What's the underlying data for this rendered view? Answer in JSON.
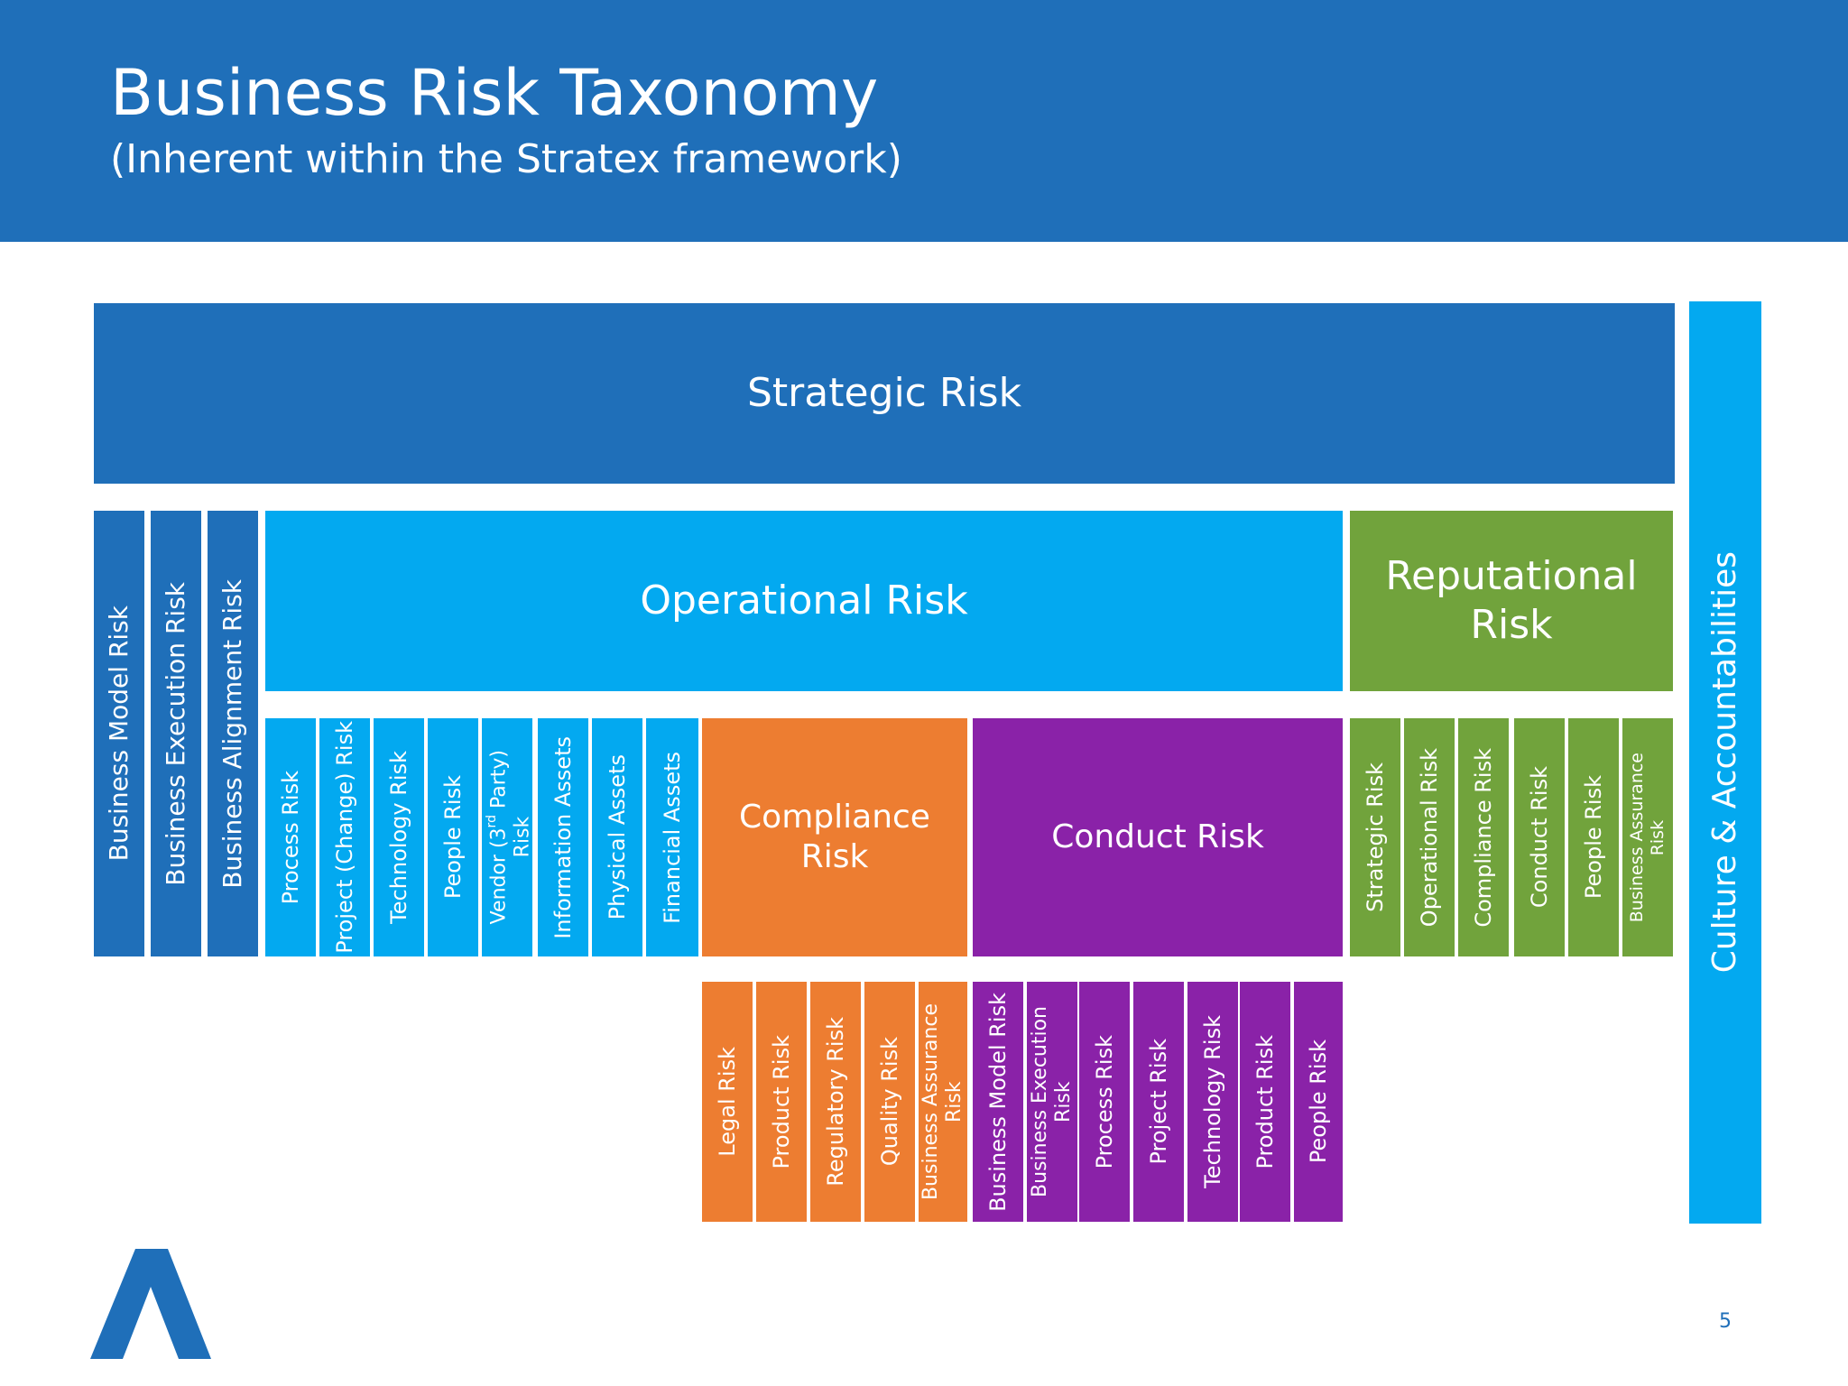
{
  "header": {
    "title": "Business Risk Taxonomy",
    "subtitle": "(Inherent within the Stratex framework)"
  },
  "colors": {
    "header_blue": "#1f6fb9",
    "strategic_blue": "#1f6fb9",
    "operational_cyan": "#03a9f0",
    "reputational_green": "#71a33c",
    "compliance_orange": "#ed7d31",
    "conduct_purple": "#8a22a8"
  },
  "strategic": {
    "label": "Strategic Risk"
  },
  "culture": {
    "label": "Culture & Accountabilities"
  },
  "strategic_sub": [
    "Business Model Risk",
    "Business Execution Risk",
    "Business Alignment Risk"
  ],
  "operational": {
    "label": "Operational Risk",
    "sub": [
      "Process Risk",
      "Project (Change) Risk",
      "Technology Risk",
      "People Risk",
      "Information Assets",
      "Physical Assets",
      "Financial Assets"
    ],
    "vendor": {
      "line1": "Vendor (3",
      "sup": "rd",
      "line1_end": " Party)",
      "line2": "Risk"
    }
  },
  "reputational": {
    "line1": "Reputational",
    "line2": "Risk",
    "sub": [
      "Strategic Risk",
      "Operational Risk",
      "Compliance Risk",
      "Conduct Risk",
      "People Risk"
    ],
    "assurance": {
      "line1": "Business Assurance",
      "line2": "Risk"
    }
  },
  "compliance": {
    "label": "Compliance Risk",
    "sub": [
      "Legal Risk",
      "Product Risk",
      "Regulatory Risk",
      "Quality Risk"
    ],
    "assurance": {
      "line1": "Business Assurance",
      "line2": "Risk"
    }
  },
  "conduct": {
    "label": "Conduct Risk",
    "sub_first": "Business Model Risk",
    "execution": {
      "line1": "Business Execution",
      "line2": "Risk"
    },
    "sub": [
      "Process Risk",
      "Project Risk",
      "Technology Risk",
      "Product Risk",
      "People Risk"
    ]
  },
  "page_number": "5"
}
